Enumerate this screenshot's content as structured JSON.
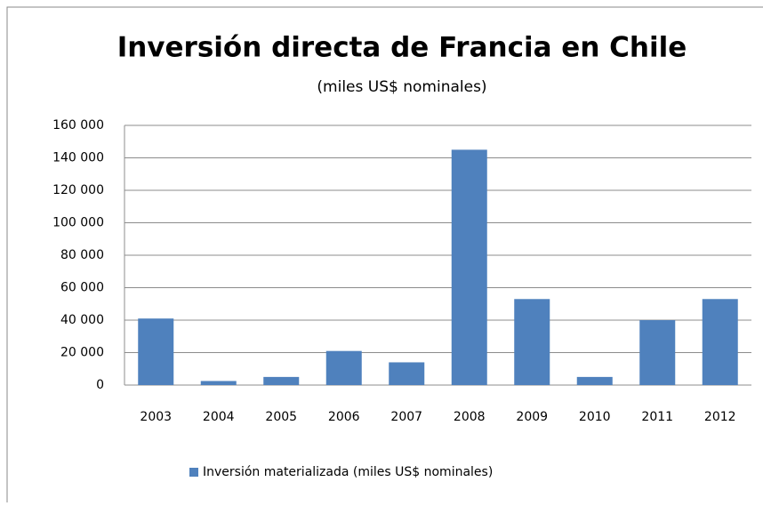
{
  "chart_data": {
    "type": "bar",
    "title": "Inversión directa de Francia en Chile",
    "subtitle": "(miles US$ nominales)",
    "categories": [
      "2003",
      "2004",
      "2005",
      "2006",
      "2007",
      "2008",
      "2009",
      "2010",
      "2011",
      "2012"
    ],
    "series": [
      {
        "name": "Inversión materializada  (miles US$  nominales)",
        "color": "#4f81bd",
        "values": [
          41000,
          2500,
          5000,
          21000,
          14000,
          145000,
          53000,
          5000,
          40000,
          53000
        ]
      }
    ],
    "ylim": [
      0,
      160000
    ],
    "yticks": [
      0,
      {
        "value": 20000,
        "label": "20 000"
      },
      {
        "value": 40000,
        "label": "40 000"
      },
      {
        "value": 60000,
        "label": "60 000"
      },
      {
        "value": 80000,
        "label": "80 000"
      },
      {
        "value": 100000,
        "label": "100 000"
      },
      {
        "value": 120000,
        "label": "120 000"
      },
      {
        "value": 140000,
        "label": "140 000"
      },
      {
        "value": 160000,
        "label": "160 000"
      }
    ],
    "grid": true,
    "legend": "bottom"
  }
}
